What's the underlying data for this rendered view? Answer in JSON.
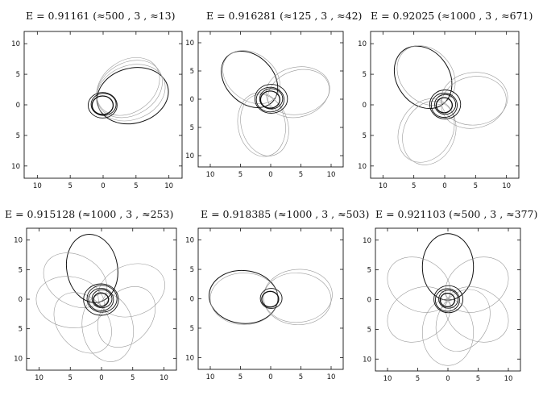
{
  "chart_data": [
    {
      "type": "line",
      "title": "E = 0.91161   (≈500 , 3 , ≈13)",
      "xlim": [
        -12,
        12
      ],
      "ylim": [
        -12,
        12
      ],
      "xticks": [
        {
          "v": -10,
          "label": "10"
        },
        {
          "v": -5,
          "label": "5"
        },
        {
          "v": 0,
          "label": "0"
        },
        {
          "v": 5,
          "label": "5"
        },
        {
          "v": 10,
          "label": "10"
        }
      ],
      "yticks": [
        {
          "v": 10,
          "label": "10"
        },
        {
          "v": 5,
          "label": "5"
        },
        {
          "v": 0,
          "label": "0"
        },
        {
          "v": -5,
          "label": "5"
        },
        {
          "v": -10,
          "label": "10"
        }
      ],
      "series": [
        {
          "lobes": [
            {
              "cx": 4.5,
              "cy": 1.5,
              "a": 5.5,
              "b": 4.5,
              "rot": 15
            },
            {
              "cx": 4.2,
              "cy": 2.0,
              "a": 5.4,
              "b": 4.4,
              "rot": 22
            },
            {
              "cx": 4.0,
              "cy": 2.6,
              "a": 5.3,
              "b": 4.3,
              "rot": 30
            },
            {
              "cx": 3.8,
              "cy": 3.0,
              "a": 5.2,
              "b": 4.2,
              "rot": 36
            }
          ],
          "inner": [
            1.6,
            1.9,
            2.2
          ]
        }
      ]
    },
    {
      "type": "line",
      "title": "E = 0.916281   (≈125 , 3 , ≈42)",
      "xlim": [
        -12,
        12
      ],
      "ylim": [
        -12,
        12
      ],
      "xticks": [
        {
          "v": -10,
          "label": "10"
        },
        {
          "v": -5,
          "label": "5"
        },
        {
          "v": 0,
          "label": "0"
        },
        {
          "v": 5,
          "label": "5"
        },
        {
          "v": 10,
          "label": "10"
        }
      ],
      "yticks": [
        {
          "v": 10,
          "label": "10"
        },
        {
          "v": 5,
          "label": "5"
        },
        {
          "v": 0,
          "label": "0"
        },
        {
          "v": -5,
          "label": "5"
        },
        {
          "v": -10,
          "label": "10"
        }
      ],
      "series": [
        {
          "lobes": [
            {
              "cx": -3.5,
              "cy": 3.5,
              "a": 5.3,
              "b": 4.2,
              "rot": -45
            },
            {
              "cx": 4.5,
              "cy": 1.5,
              "a": 5.3,
              "b": 4.2,
              "rot": 10
            },
            {
              "cx": -1.5,
              "cy": -4.5,
              "a": 5.3,
              "b": 4.2,
              "rot": 100
            },
            {
              "cx": -3.2,
              "cy": 3.9,
              "a": 5.2,
              "b": 4.1,
              "rot": -38
            },
            {
              "cx": 4.6,
              "cy": 1.0,
              "a": 5.2,
              "b": 4.1,
              "rot": 18
            },
            {
              "cx": -1.0,
              "cy": -4.6,
              "a": 5.2,
              "b": 4.1,
              "rot": 108
            }
          ],
          "inner": [
            1.6,
            1.9,
            2.3,
            2.7
          ]
        }
      ]
    },
    {
      "type": "line",
      "title": "E = 0.92025   (≈1000 , 3 , ≈671)",
      "xlim": [
        -12,
        12
      ],
      "ylim": [
        -12,
        12
      ],
      "xticks": [
        {
          "v": -10,
          "label": "10"
        },
        {
          "v": -5,
          "label": "5"
        },
        {
          "v": 0,
          "label": "0"
        },
        {
          "v": 5,
          "label": "5"
        },
        {
          "v": 10,
          "label": "10"
        }
      ],
      "yticks": [
        {
          "v": 10,
          "label": "10"
        },
        {
          "v": 5,
          "label": "5"
        },
        {
          "v": 0,
          "label": "0"
        },
        {
          "v": -5,
          "label": "5"
        },
        {
          "v": -10,
          "label": "10"
        }
      ],
      "series": [
        {
          "lobes": [
            {
              "cx": -3.5,
              "cy": 4.5,
              "a": 5.4,
              "b": 4.3,
              "rot": -55
            },
            {
              "cx": 4.8,
              "cy": 1.0,
              "a": 5.4,
              "b": 4.3,
              "rot": 5
            },
            {
              "cx": -3.0,
              "cy": -4.2,
              "a": 5.4,
              "b": 4.3,
              "rot": 60
            },
            {
              "cx": -3.0,
              "cy": 4.8,
              "a": 5.3,
              "b": 4.2,
              "rot": -48
            },
            {
              "cx": 4.7,
              "cy": 0.4,
              "a": 5.3,
              "b": 4.2,
              "rot": 12
            },
            {
              "cx": -2.5,
              "cy": -4.6,
              "a": 5.3,
              "b": 4.2,
              "rot": 68
            }
          ],
          "inner": [
            1.3,
            1.7,
            2.1,
            2.5
          ]
        }
      ]
    },
    {
      "type": "line",
      "title": "E = 0.915128   (≈1000 , 3 , ≈253)",
      "xlim": [
        -12,
        12
      ],
      "ylim": [
        -12,
        12
      ],
      "xticks": [
        {
          "v": -10,
          "label": "10"
        },
        {
          "v": -5,
          "label": "5"
        },
        {
          "v": 0,
          "label": "0"
        },
        {
          "v": 5,
          "label": "5"
        },
        {
          "v": 10,
          "label": "10"
        }
      ],
      "yticks": [
        {
          "v": 10,
          "label": "10"
        },
        {
          "v": 5,
          "label": "5"
        },
        {
          "v": 0,
          "label": "0"
        },
        {
          "v": -5,
          "label": "5"
        },
        {
          "v": -10,
          "label": "10"
        }
      ],
      "series": [
        {
          "lobes": [
            {
              "cx": -1.5,
              "cy": 5.2,
              "a": 5.5,
              "b": 4.3,
              "rot": -80
            },
            {
              "cx": 4.8,
              "cy": 1.5,
              "a": 5.5,
              "b": 4.3,
              "rot": 20
            },
            {
              "cx": -5.0,
              "cy": -0.5,
              "a": 5.5,
              "b": 4.3,
              "rot": 170
            },
            {
              "cx": 1.0,
              "cy": -4.8,
              "a": 5.5,
              "b": 4.3,
              "rot": 100
            },
            {
              "cx": -4.2,
              "cy": 3.2,
              "a": 5.4,
              "b": 4.2,
              "rot": -30
            },
            {
              "cx": 4.0,
              "cy": -3.0,
              "a": 5.4,
              "b": 4.2,
              "rot": 50
            },
            {
              "cx": -3.0,
              "cy": -4.0,
              "a": 5.4,
              "b": 4.2,
              "rot": 130
            }
          ],
          "inner": [
            1.2,
            1.6,
            2.0,
            2.4,
            2.8
          ]
        }
      ]
    },
    {
      "type": "line",
      "title": "E = 0.918385   (≈1000 , 3 , ≈503)",
      "xlim": [
        -12,
        12
      ],
      "ylim": [
        -12,
        12
      ],
      "xticks": [
        {
          "v": -10,
          "label": "10"
        },
        {
          "v": -5,
          "label": "5"
        },
        {
          "v": 0,
          "label": "0"
        },
        {
          "v": 5,
          "label": "5"
        },
        {
          "v": 10,
          "label": "10"
        }
      ],
      "yticks": [
        {
          "v": 10,
          "label": "10"
        },
        {
          "v": 5,
          "label": "5"
        },
        {
          "v": 0,
          "label": "0"
        },
        {
          "v": -5,
          "label": "5"
        },
        {
          "v": -10,
          "label": "10"
        }
      ],
      "series": [
        {
          "lobes": [
            {
              "cx": -4.5,
              "cy": 0.3,
              "a": 5.7,
              "b": 4.5,
              "rot": -5
            },
            {
              "cx": 4.5,
              "cy": 0.5,
              "a": 5.7,
              "b": 4.5,
              "rot": 5
            },
            {
              "cx": -4.4,
              "cy": 0.0,
              "a": 5.6,
              "b": 4.4,
              "rot": 0
            },
            {
              "cx": 4.4,
              "cy": 0.0,
              "a": 5.6,
              "b": 4.4,
              "rot": -3
            }
          ],
          "inner": [
            1.4,
            1.8
          ]
        }
      ]
    },
    {
      "type": "line",
      "title": "E = 0.921103   (≈500 , 3 , ≈377)",
      "xlim": [
        -12,
        12
      ],
      "ylim": [
        -12,
        12
      ],
      "xticks": [
        {
          "v": -10,
          "label": "10"
        },
        {
          "v": -5,
          "label": "5"
        },
        {
          "v": 0,
          "label": "0"
        },
        {
          "v": 5,
          "label": "5"
        },
        {
          "v": 10,
          "label": "10"
        }
      ],
      "yticks": [
        {
          "v": 10,
          "label": "10"
        },
        {
          "v": 5,
          "label": "5"
        },
        {
          "v": 0,
          "label": "0"
        },
        {
          "v": -5,
          "label": "5"
        },
        {
          "v": -10,
          "label": "10"
        }
      ],
      "series": [
        {
          "lobes": [
            {
              "cx": 0.0,
              "cy": 5.5,
              "a": 5.5,
              "b": 4.3,
              "rot": -90
            },
            {
              "cx": 4.8,
              "cy": 2.5,
              "a": 5.5,
              "b": 4.3,
              "rot": 30
            },
            {
              "cx": -4.8,
              "cy": 2.5,
              "a": 5.5,
              "b": 4.3,
              "rot": 150
            },
            {
              "cx": -4.8,
              "cy": -2.5,
              "a": 5.5,
              "b": 4.3,
              "rot": 210
            },
            {
              "cx": 4.8,
              "cy": -2.5,
              "a": 5.5,
              "b": 4.3,
              "rot": -30
            },
            {
              "cx": 0.0,
              "cy": -5.5,
              "a": 5.5,
              "b": 4.3,
              "rot": 90
            },
            {
              "cx": 2.5,
              "cy": -3.5,
              "a": 5.4,
              "b": 4.2,
              "rot": 60
            }
          ],
          "inner": [
            1.2,
            1.6,
            2.0,
            2.4
          ]
        }
      ]
    }
  ]
}
